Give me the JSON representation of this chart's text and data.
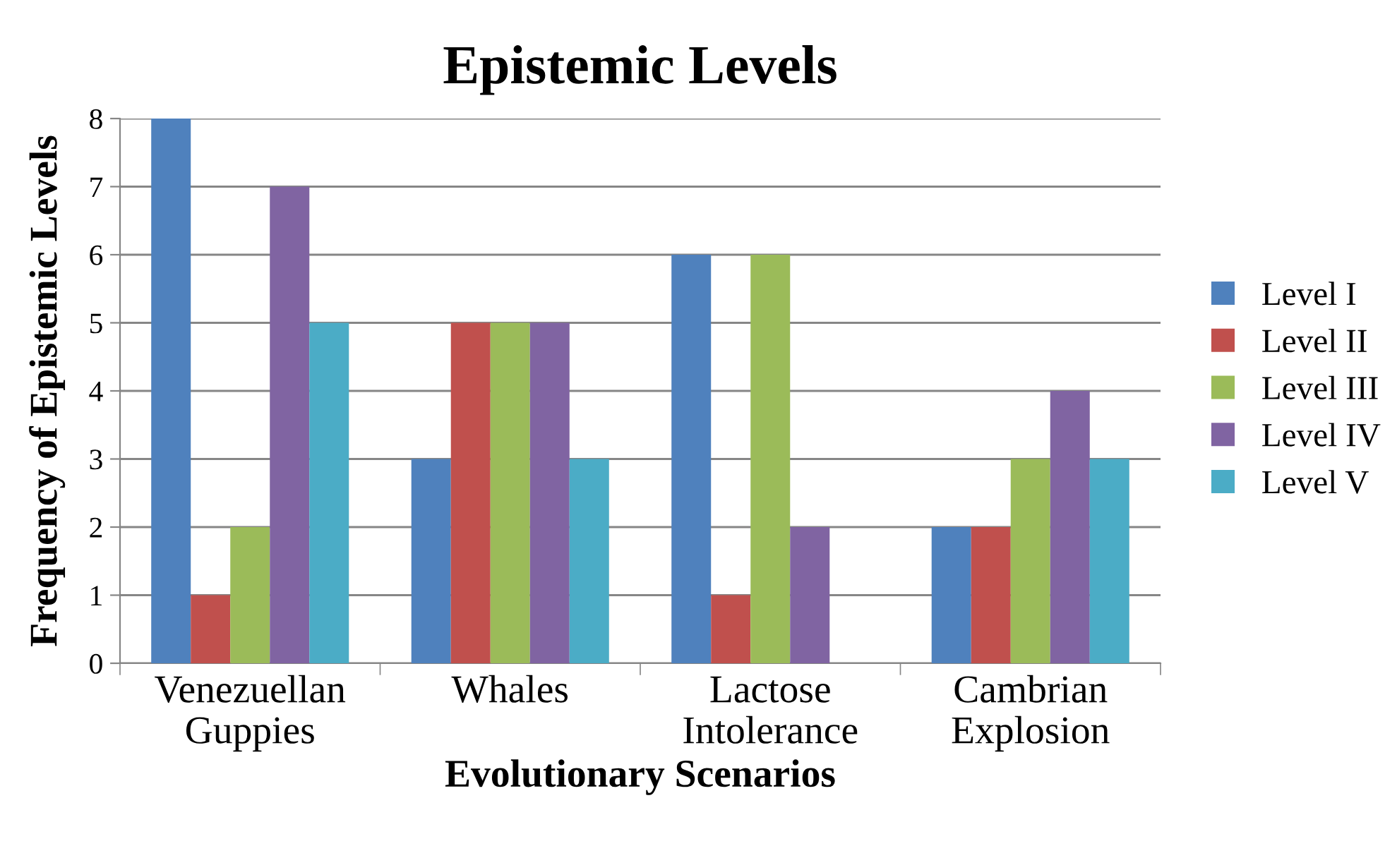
{
  "chart_data": {
    "type": "bar",
    "title": "Epistemic Levels",
    "xlabel": "Evolutionary Scenarios",
    "ylabel": "Frequency of Epistemic Levels",
    "categories": [
      "Venezuellan Guppies",
      "Whales",
      "Lactose Intolerance",
      "Cambrian Explosion"
    ],
    "series": [
      {
        "name": "Level I",
        "color": "#4f81bd",
        "values": [
          8,
          3,
          6,
          2
        ]
      },
      {
        "name": "Level II",
        "color": "#c0504d",
        "values": [
          1,
          5,
          1,
          2
        ]
      },
      {
        "name": "Level III",
        "color": "#9bbb59",
        "values": [
          2,
          5,
          6,
          3
        ]
      },
      {
        "name": "Level IV",
        "color": "#8064a2",
        "values": [
          7,
          5,
          2,
          4
        ]
      },
      {
        "name": "Level V",
        "color": "#4bacc6",
        "values": [
          5,
          3,
          0,
          3
        ]
      }
    ],
    "ylim": [
      0,
      8
    ],
    "yticks": [
      0,
      1,
      2,
      3,
      4,
      5,
      6,
      7,
      8
    ],
    "grid": "y",
    "legend": "right"
  }
}
